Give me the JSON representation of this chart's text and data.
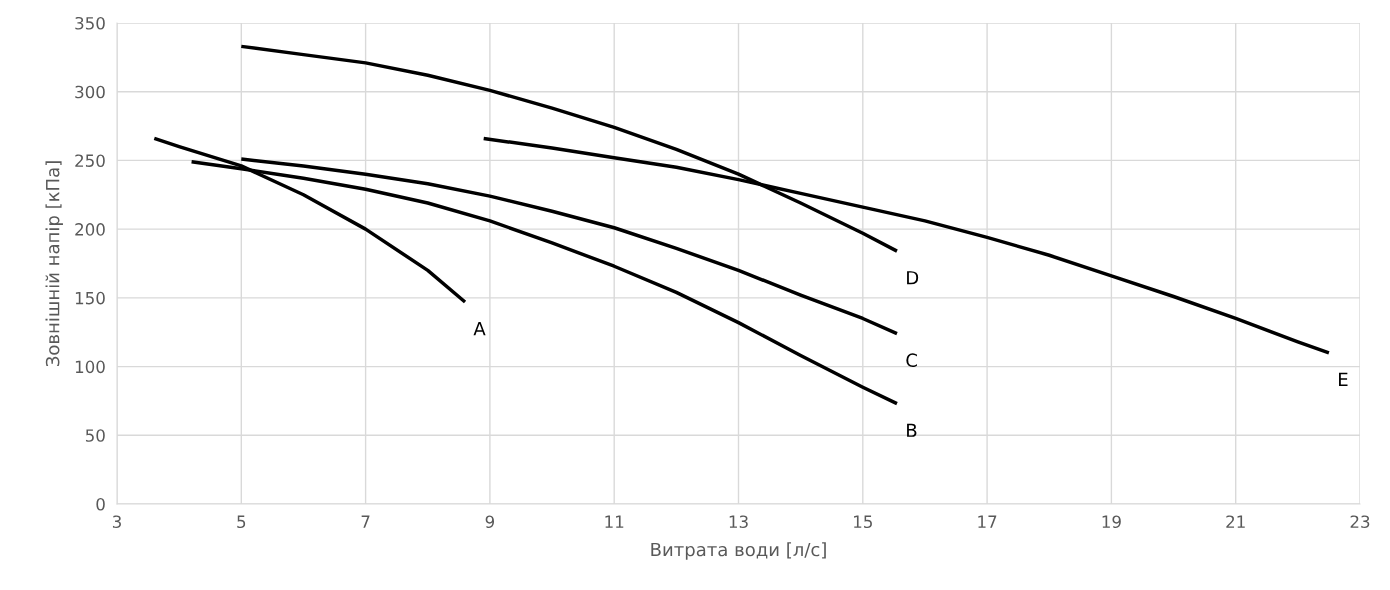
{
  "chart_data": {
    "type": "line",
    "xlabel": "Витрата води [л/с]",
    "ylabel": "Зовнішній напір [кПа]",
    "xlim": [
      3,
      23
    ],
    "xticks": [
      3,
      5,
      7,
      9,
      11,
      13,
      15,
      17,
      19,
      21,
      23
    ],
    "ylim": [
      0,
      350
    ],
    "yticks": [
      0,
      50,
      100,
      150,
      200,
      250,
      300,
      350
    ],
    "grid": true,
    "legend": false,
    "marker": "none",
    "line_style": "solid",
    "series": [
      {
        "name": "A",
        "color": "#000000",
        "x": [
          3.6,
          4,
          5,
          6,
          7,
          8,
          8.6
        ],
        "values": [
          266,
          260,
          246,
          225,
          200,
          170,
          147
        ]
      },
      {
        "name": "B",
        "color": "#000000",
        "x": [
          4.2,
          5,
          6,
          7,
          8,
          9,
          10,
          11,
          12,
          13,
          14,
          15,
          15.55
        ],
        "values": [
          249,
          244,
          237,
          229,
          219,
          206,
          190,
          173,
          154,
          132,
          108,
          85,
          73
        ]
      },
      {
        "name": "C",
        "color": "#000000",
        "x": [
          5,
          6,
          7,
          8,
          9,
          10,
          11,
          12,
          13,
          14,
          15,
          15.55
        ],
        "values": [
          251,
          246,
          240,
          233,
          224,
          213,
          201,
          186,
          170,
          152,
          135,
          124
        ]
      },
      {
        "name": "D",
        "color": "#000000",
        "x": [
          5,
          6,
          7,
          8,
          9,
          10,
          11,
          12,
          13,
          14,
          15,
          15.55
        ],
        "values": [
          333,
          327,
          321,
          312,
          301,
          288,
          274,
          258,
          240,
          219,
          197,
          184
        ]
      },
      {
        "name": "E",
        "color": "#000000",
        "x": [
          8.9,
          10,
          11,
          12,
          13,
          14,
          15,
          16,
          17,
          18,
          19,
          20,
          21,
          22,
          22.5
        ],
        "values": [
          266,
          259,
          252,
          245,
          236,
          226,
          216,
          206,
          194,
          181,
          166,
          151,
          135,
          118,
          110
        ]
      }
    ]
  }
}
